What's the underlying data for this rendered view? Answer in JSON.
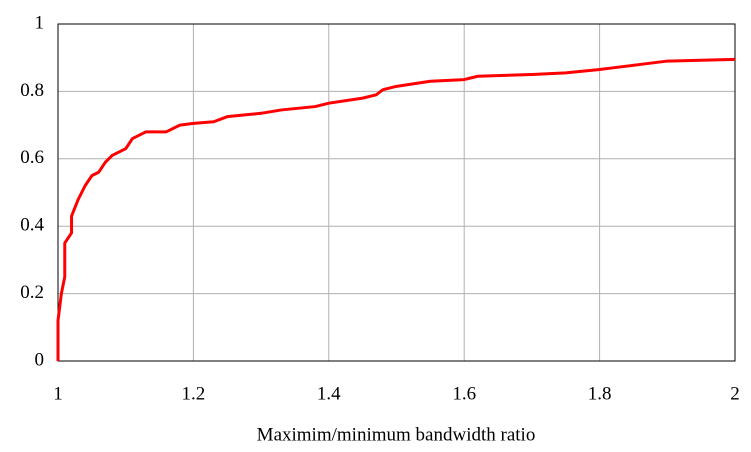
{
  "chart_data": {
    "type": "line",
    "x_label": "Maximim/minimum bandwidth ratio",
    "x": [
      1.0,
      1.0,
      1.005,
      1.01,
      1.01,
      1.02,
      1.02,
      1.03,
      1.04,
      1.05,
      1.06,
      1.07,
      1.08,
      1.1,
      1.11,
      1.13,
      1.16,
      1.18,
      1.2,
      1.23,
      1.25,
      1.3,
      1.33,
      1.38,
      1.4,
      1.45,
      1.47,
      1.48,
      1.5,
      1.55,
      1.6,
      1.62,
      1.7,
      1.75,
      1.8,
      1.82,
      1.86,
      1.9,
      2.0
    ],
    "values": [
      0,
      0.12,
      0.2,
      0.25,
      0.35,
      0.38,
      0.43,
      0.48,
      0.52,
      0.55,
      0.56,
      0.59,
      0.61,
      0.63,
      0.66,
      0.68,
      0.68,
      0.7,
      0.705,
      0.71,
      0.725,
      0.735,
      0.745,
      0.755,
      0.765,
      0.78,
      0.79,
      0.805,
      0.815,
      0.83,
      0.835,
      0.845,
      0.85,
      0.855,
      0.865,
      0.87,
      0.88,
      0.89,
      0.895
    ],
    "color": "#ff0000",
    "xlim": [
      1,
      2
    ],
    "xticks": [
      1,
      1.2,
      1.4,
      1.6,
      1.8,
      2
    ],
    "ylim": [
      0,
      1
    ],
    "yticks": [
      0,
      0.2,
      0.4,
      0.6,
      0.8,
      1
    ],
    "grid": true
  }
}
